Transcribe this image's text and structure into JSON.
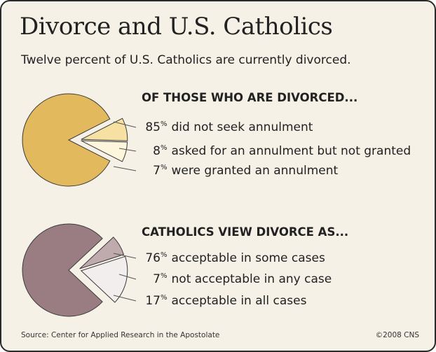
{
  "title": "Divorce and U.S. Catholics",
  "subtitle": "Twelve percent of U.S. Catholics are currently divorced.",
  "percent_sign": "%",
  "source": "Source: Center for Applied Research in the Apostolate",
  "credit": "©2008 CNS",
  "chart_data": [
    {
      "type": "pie",
      "title": "OF THOSE WHO ARE DIVORCED...",
      "categories": [
        "did not seek annulment",
        "asked for an annulment but not granted",
        "were granted an annulment"
      ],
      "values": [
        85,
        8,
        7
      ],
      "colors": [
        "#e3b95d",
        "#f6e1a2",
        "#fdf5dc"
      ]
    },
    {
      "type": "pie",
      "title": "CATHOLICS VIEW DIVORCE AS...",
      "categories": [
        "acceptable in some cases",
        "not acceptable in any case",
        "acceptable in all cases"
      ],
      "values": [
        76,
        7,
        17
      ],
      "colors": [
        "#9a7d83",
        "#bfaaae",
        "#f3eeee"
      ]
    }
  ]
}
